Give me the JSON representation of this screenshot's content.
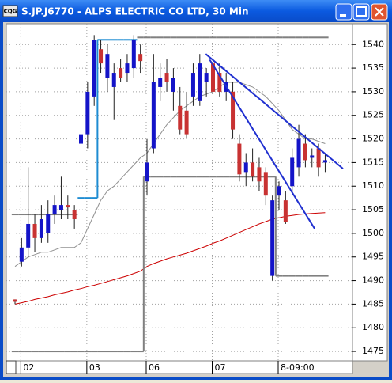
{
  "window_title": "S.JP.J6770 - ALPS ELECTRIC CO LTD, 30 Min",
  "icon_text": "CQG",
  "chart_data": {
    "type": "candlestick",
    "categories": [
      null,
      "02",
      null,
      null,
      null,
      null,
      null,
      null,
      null,
      null,
      null,
      "03",
      null,
      null,
      null,
      null,
      null,
      null,
      null,
      null,
      "06",
      null,
      null,
      null,
      null,
      null,
      null,
      null,
      null,
      null,
      "07",
      null,
      null,
      null,
      null,
      null,
      null,
      null,
      null,
      null,
      "8-09:00",
      null,
      null,
      null,
      null,
      null,
      null,
      null
    ],
    "open": [
      1486,
      1494,
      1497,
      1502,
      1499,
      1500,
      1504,
      1505,
      1506,
      1505,
      1519,
      1521,
      1529,
      1539,
      1533,
      1531,
      1535,
      1534,
      1535,
      1538,
      1511,
      1518,
      1531,
      1534,
      1530,
      1527,
      1526,
      1529,
      1528,
      1532,
      1536,
      1534,
      1530,
      1530,
      1519,
      1513,
      1515,
      1514,
      1513,
      1491,
      1508,
      1507,
      1510,
      1514,
      1519,
      1516,
      1518,
      1515
    ],
    "high": [
      1486,
      1499,
      1514,
      1504,
      1506,
      1507,
      1508,
      1512,
      1508,
      1506,
      1522,
      1532,
      1542,
      1541,
      1540,
      1536,
      1537,
      1538,
      1542,
      1540,
      1520,
      1538,
      1536,
      1537,
      1535,
      1531,
      1530,
      1536,
      1538,
      1535,
      1538,
      1536,
      1534,
      1532,
      1521,
      1517,
      1518,
      1516,
      1514,
      1508,
      1511,
      1509,
      1518,
      1523,
      1521,
      1518,
      1519,
      1517
    ],
    "low": [
      1485,
      1493,
      1495,
      1496,
      1498,
      1498,
      1502,
      1503,
      1503,
      1501,
      1516,
      1518,
      1527,
      1534,
      1530,
      1524,
      1532,
      1532,
      1533,
      1534,
      1508,
      1517,
      1528,
      1530,
      1526,
      1521,
      1520,
      1527,
      1527,
      1529,
      1529,
      1529,
      1528,
      1520,
      1511,
      1510,
      1511,
      1509,
      1506,
      1490,
      1505,
      1502,
      1508,
      1512,
      1514,
      1514,
      1512,
      1513
    ],
    "close": [
      1485.5,
      1497,
      1502,
      1499,
      1503,
      1504,
      1506,
      1506,
      1505.5,
      1503,
      1521,
      1530,
      1541,
      1536,
      1538,
      1534,
      1533,
      1536,
      1541,
      1536.5,
      1515,
      1532,
      1533,
      1532,
      1533,
      1522,
      1521,
      1534,
      1536,
      1534,
      1530,
      1530,
      1532,
      1522,
      1512.5,
      1515,
      1512,
      1511,
      1508,
      1507,
      1510,
      1502.5,
      1516,
      1520,
      1515.5,
      1516.5,
      1514,
      1515.5
    ],
    "up_color": "#1414c8",
    "down_color": "#c83232",
    "wick_color": "#202020",
    "series": [
      {
        "color": "#909090",
        "style": "line",
        "values": [
          1493,
          1494,
          1495,
          1495.5,
          1496,
          1496,
          1496.5,
          1497,
          1497,
          1497,
          1498,
          1501,
          1504,
          1507,
          1509,
          1510,
          1511.5,
          1513,
          1514.5,
          1516,
          1517,
          1519,
          1521,
          1523,
          1524.5,
          1526,
          1527,
          1528,
          1529,
          1529.5,
          1530,
          1531,
          1532,
          1532,
          1532,
          1531.5,
          1531,
          1530,
          1529,
          1527.5,
          1526,
          1524,
          1522,
          1521,
          1520,
          1520,
          1519.5,
          1519
        ]
      },
      {
        "color": "#cc0000",
        "style": "line",
        "values": [
          1485,
          1485.3,
          1485.6,
          1486,
          1486.3,
          1486.6,
          1487,
          1487.3,
          1487.6,
          1488,
          1488.3,
          1488.7,
          1489,
          1489.4,
          1489.8,
          1490.2,
          1490.6,
          1491,
          1491.5,
          1492,
          1493,
          1493.6,
          1494.1,
          1494.6,
          1495,
          1495.4,
          1495.8,
          1496.3,
          1496.8,
          1497.3,
          1497.9,
          1498.4,
          1499,
          1499.6,
          1500.2,
          1500.8,
          1501.4,
          1502,
          1502.5,
          1503,
          1503.3,
          1503.6,
          1503.8,
          1504,
          1504.1,
          1504.2,
          1504.3,
          1504.4
        ]
      },
      {
        "color": "#808080",
        "style": "step",
        "values": [
          1504,
          1504,
          1504,
          1504,
          1504,
          1504,
          1504,
          1504,
          1504,
          1504,
          null,
          null,
          null,
          null,
          null,
          null,
          null,
          null,
          null,
          1541.5,
          1541.5,
          1541.5,
          1541.5,
          1541.5,
          1541.5,
          1541.5,
          1541.5,
          1541.5,
          1541.5,
          1541.5,
          1541.5,
          1541.5,
          1541.5,
          1541.5,
          1541.5,
          1541.5,
          1541.5,
          1541.5,
          1541.5,
          1541.5,
          1541.5,
          1541.5,
          1541.5,
          1541.5,
          1541.5,
          1541.5,
          1541.5,
          1541.5
        ]
      },
      {
        "color": "#1e8cd2",
        "style": "step",
        "values": [
          null,
          null,
          null,
          null,
          null,
          null,
          null,
          null,
          null,
          null,
          1507.5,
          1507.5,
          1507.5,
          1541,
          1541,
          1541,
          1541,
          1541,
          1541,
          null,
          null,
          null,
          null,
          null,
          null,
          null,
          null,
          null,
          null,
          null,
          null,
          null,
          null,
          null,
          null,
          null,
          null,
          null,
          null,
          null,
          null,
          null,
          null,
          null,
          null,
          null,
          null,
          null
        ]
      },
      {
        "color": "#808080",
        "style": "step",
        "values": [
          1475,
          1475,
          1475,
          1475,
          1475,
          1475,
          1475,
          1475,
          1475,
          1475,
          1475,
          1475,
          1475,
          1475,
          1475,
          1475,
          1475,
          1475,
          1475,
          1475,
          1512,
          1512,
          1512,
          1512,
          1512,
          1512,
          1512,
          1512,
          1512,
          1512,
          1512,
          1512,
          1512,
          1512,
          1512,
          1512,
          1512,
          1512,
          1512,
          1512,
          1491,
          1491,
          1491,
          1491,
          1491,
          1491,
          1491,
          1491
        ]
      }
    ],
    "trend_lines": [
      {
        "color": "#2030d0",
        "x": [
          28.9,
          49.7
        ],
        "y": [
          1538,
          1513.7
        ]
      },
      {
        "color": "#2030d0",
        "x": [
          29.5,
          45.4
        ],
        "y": [
          1536.8,
          1501
        ]
      }
    ],
    "ylim": [
      1473,
      1544.4
    ],
    "yticks": [
      1475,
      1480,
      1485,
      1490,
      1495,
      1500,
      1505,
      1510,
      1515,
      1520,
      1525,
      1530,
      1535,
      1540
    ],
    "grid": true
  }
}
